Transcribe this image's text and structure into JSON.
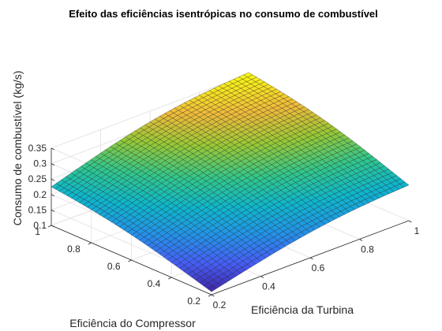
{
  "chart_data": {
    "type": "surface",
    "title": "Efeito das eficiências isentrópicas no consumo de combustível",
    "xlabel": "Eficiência da Turbina",
    "ylabel": "Eficiência do Compressor",
    "zlabel": "Consumo de combustível (kg/s)",
    "xlim": [
      0.2,
      1
    ],
    "ylim": [
      0.2,
      1
    ],
    "zlim": [
      0.1,
      0.35
    ],
    "x_ticks": [
      "0.2",
      "0.4",
      "0.6",
      "0.8",
      "1"
    ],
    "y_ticks": [
      "0.2",
      "0.4",
      "0.6",
      "0.8",
      "1"
    ],
    "z_ticks": [
      "0.1",
      "0.15",
      "0.2",
      "0.25",
      "0.3",
      "0.35"
    ],
    "grid": true,
    "colormap": "parula",
    "corner_values": [
      {
        "x": 0.2,
        "y": 0.2,
        "z": 0.11
      },
      {
        "x": 1,
        "y": 0.2,
        "z": 0.215
      },
      {
        "x": 0.2,
        "y": 1,
        "z": 0.225
      },
      {
        "x": 1,
        "y": 1,
        "z": 0.355
      }
    ],
    "mesh_divisions": 40
  }
}
